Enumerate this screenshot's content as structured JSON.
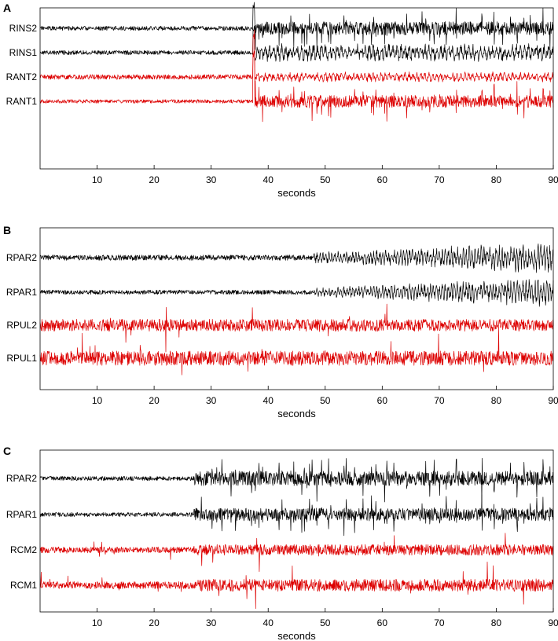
{
  "chart_data": [
    {
      "panel": "A",
      "type": "line",
      "xlabel": "seconds",
      "xticks": [
        10,
        20,
        30,
        40,
        50,
        60,
        70,
        80,
        90
      ],
      "xlim": [
        0,
        90
      ],
      "series": [
        {
          "name": "RINS2",
          "color": "#000000",
          "onset": 37.5,
          "pre_amp": 0.7,
          "post_amp": 2.2,
          "style": "spiky",
          "seed": 11
        },
        {
          "name": "RINS1",
          "color": "#000000",
          "onset": 37.5,
          "pre_amp": 0.7,
          "post_amp": 1.6,
          "style": "dense",
          "seed": 23
        },
        {
          "name": "RANT2",
          "color": "#dd0000",
          "onset": 37.5,
          "pre_amp": 0.8,
          "post_amp": 0.9,
          "style": "dense",
          "seed": 37
        },
        {
          "name": "RANT1",
          "color": "#dd0000",
          "onset": 37.5,
          "pre_amp": 0.6,
          "post_amp": 2.0,
          "style": "spiky",
          "seed": 41
        }
      ]
    },
    {
      "panel": "B",
      "type": "line",
      "xlabel": "seconds",
      "xticks": [
        10,
        20,
        30,
        40,
        50,
        60,
        70,
        80,
        90
      ],
      "xlim": [
        0,
        90
      ],
      "series": [
        {
          "name": "RPAR2",
          "color": "#000000",
          "onset": 48,
          "pre_amp": 0.9,
          "post_amp": 2.6,
          "style": "ramp",
          "seed": 53
        },
        {
          "name": "RPAR1",
          "color": "#000000",
          "onset": 48,
          "pre_amp": 0.7,
          "post_amp": 2.4,
          "style": "ramp",
          "seed": 67
        },
        {
          "name": "RPUL2",
          "color": "#dd0000",
          "onset": 0,
          "pre_amp": 1.8,
          "post_amp": 2.0,
          "style": "noise",
          "seed": 71
        },
        {
          "name": "RPUL1",
          "color": "#dd0000",
          "onset": 0,
          "pre_amp": 2.2,
          "post_amp": 2.4,
          "style": "noise",
          "seed": 83
        }
      ]
    },
    {
      "panel": "C",
      "type": "line",
      "xlabel": "seconds",
      "xticks": [
        10,
        20,
        30,
        40,
        50,
        60,
        70,
        80,
        90
      ],
      "xlim": [
        0,
        90
      ],
      "series": [
        {
          "name": "RPAR2",
          "color": "#000000",
          "onset": 27,
          "pre_amp": 0.7,
          "post_amp": 2.4,
          "style": "spiky",
          "seed": 97
        },
        {
          "name": "RPAR1",
          "color": "#000000",
          "onset": 27,
          "pre_amp": 0.7,
          "post_amp": 2.1,
          "style": "spiky",
          "seed": 101
        },
        {
          "name": "RCM2",
          "color": "#dd0000",
          "onset": 27,
          "pre_amp": 1.0,
          "post_amp": 1.8,
          "style": "noise",
          "seed": 113
        },
        {
          "name": "RCM1",
          "color": "#dd0000",
          "onset": 27,
          "pre_amp": 1.2,
          "post_amp": 2.0,
          "style": "noise",
          "seed": 127
        }
      ]
    }
  ]
}
